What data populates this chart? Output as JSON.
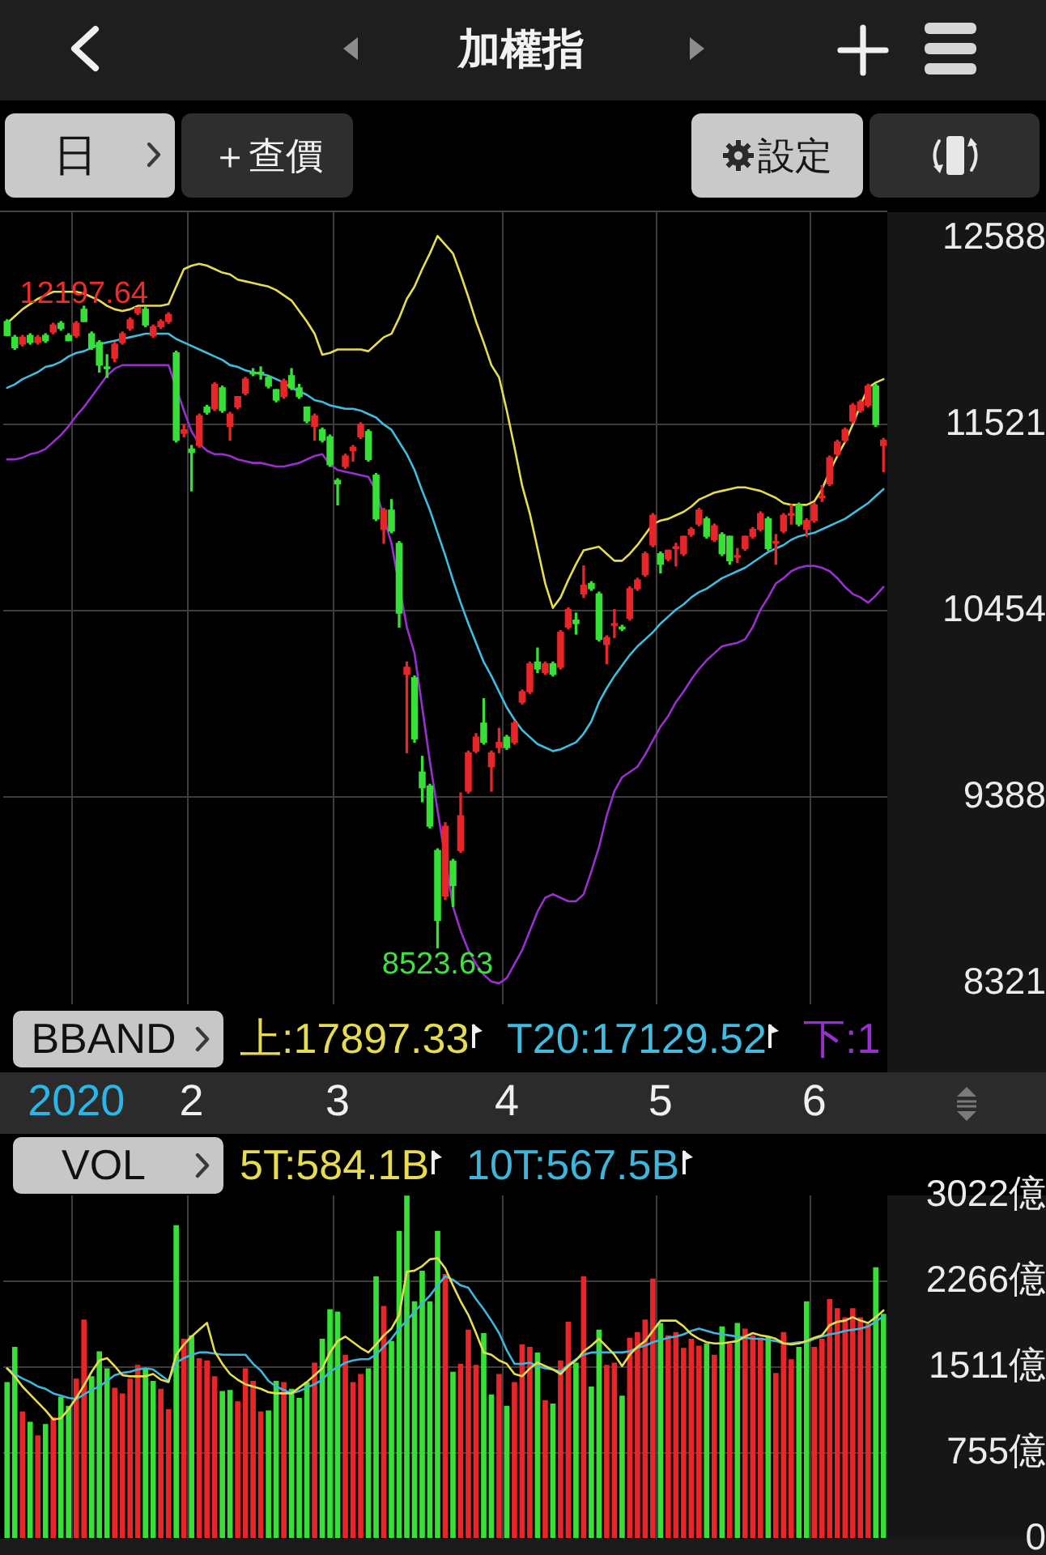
{
  "chart_data": [
    {
      "type": "candlestick",
      "title": "加權指",
      "categories": [
        null,
        null,
        null,
        null,
        null,
        null,
        null,
        null,
        null,
        "2020",
        null,
        null,
        null,
        null,
        null,
        null,
        null,
        null,
        null,
        null,
        null,
        null,
        null,
        null,
        "2",
        null,
        null,
        null,
        null,
        null,
        null,
        null,
        null,
        null,
        null,
        null,
        null,
        null,
        null,
        null,
        null,
        null,
        null,
        "3",
        null,
        null,
        null,
        null,
        null,
        null,
        null,
        null,
        null,
        null,
        null,
        null,
        null,
        null,
        null,
        null,
        null,
        null,
        null,
        null,
        null,
        "4",
        null,
        null,
        null,
        null,
        null,
        null,
        null,
        null,
        null,
        null,
        null,
        null,
        null,
        null,
        null,
        null,
        null,
        null,
        null,
        "5",
        null,
        null,
        null,
        null,
        null,
        null,
        null,
        null,
        null,
        null,
        null,
        null,
        null,
        null,
        null,
        null,
        null,
        null,
        null,
        "6",
        null,
        null,
        null,
        null,
        null,
        null,
        null,
        null,
        null
      ],
      "ohlc": [
        [
          12110,
          12120,
          12030,
          12030
        ],
        [
          12020,
          12030,
          11950,
          11960
        ],
        [
          11980,
          12030,
          11970,
          12020
        ],
        [
          12030,
          12040,
          11980,
          11990
        ],
        [
          11990,
          12030,
          11980,
          12020
        ],
        [
          12030,
          12040,
          11990,
          12000
        ],
        [
          12050,
          12100,
          12040,
          12090
        ],
        [
          12100,
          12110,
          12060,
          12070
        ],
        [
          12030,
          12040,
          12000,
          12000
        ],
        [
          12030,
          12110,
          12020,
          12100
        ],
        [
          12180,
          12197.64,
          12110,
          12110
        ],
        [
          12040,
          12050,
          11950,
          11960
        ],
        [
          11990,
          12000,
          11820,
          11860
        ],
        [
          11850,
          11920,
          11790,
          11840
        ],
        [
          11900,
          11990,
          11880,
          11980
        ],
        [
          11990,
          12050,
          11980,
          12040
        ],
        [
          12070,
          12130,
          12060,
          12120
        ],
        [
          12160,
          12190,
          12150,
          12190
        ],
        [
          12180,
          12190,
          12080,
          12090
        ],
        [
          12030,
          12090,
          12020,
          12080
        ],
        [
          12080,
          12120,
          12070,
          12110
        ],
        [
          12110,
          12160,
          12100,
          12150
        ],
        [
          11930,
          11940,
          11420,
          11430
        ],
        [
          11470,
          11520,
          11450,
          11490
        ],
        [
          11380,
          11400,
          11140,
          11360
        ],
        [
          11400,
          11580,
          11390,
          11570
        ],
        [
          11620,
          11630,
          11580,
          11590
        ],
        [
          11610,
          11760,
          11600,
          11750
        ],
        [
          11730,
          11740,
          11590,
          11600
        ],
        [
          11510,
          11590,
          11430,
          11580
        ],
        [
          11620,
          11680,
          11610,
          11680
        ],
        [
          11700,
          11790,
          11690,
          11780
        ],
        [
          11820,
          11840,
          11800,
          11810
        ],
        [
          11820,
          11850,
          11780,
          11810
        ],
        [
          11790,
          11800,
          11730,
          11740
        ],
        [
          11720,
          11720,
          11650,
          11660
        ],
        [
          11680,
          11780,
          11670,
          11770
        ],
        [
          11800,
          11840,
          11720,
          11730
        ],
        [
          11730,
          11750,
          11670,
          11680
        ],
        [
          11620,
          11620,
          11530,
          11540
        ],
        [
          11510,
          11580,
          11430,
          11570
        ],
        [
          11490,
          11500,
          11420,
          11430
        ],
        [
          11450,
          11460,
          11280,
          11290
        ],
        [
          11200,
          11210,
          11060,
          11180
        ],
        [
          11280,
          11350,
          11270,
          11340
        ],
        [
          11370,
          11400,
          11310,
          11390
        ],
        [
          11450,
          11530,
          11440,
          11520
        ],
        [
          11480,
          11490,
          11310,
          11320
        ],
        [
          11230,
          11240,
          10970,
          10980
        ],
        [
          10920,
          11040,
          10840,
          11030
        ],
        [
          11030,
          11090,
          10900,
          10910
        ],
        [
          10840,
          10850,
          10360,
          10440
        ],
        [
          10090,
          10160,
          9640,
          10130
        ],
        [
          10070,
          10080,
          9700,
          9720
        ],
        [
          9530,
          9620,
          9360,
          9440
        ],
        [
          9450,
          9460,
          9210,
          9220
        ],
        [
          9080,
          9090,
          8523.63,
          8680
        ],
        [
          8820,
          9240,
          8800,
          9220
        ],
        [
          9020,
          9030,
          8760,
          8880
        ],
        [
          9080,
          9410,
          9070,
          9280
        ],
        [
          9420,
          9650,
          9410,
          9640
        ],
        [
          9650,
          9750,
          9640,
          9730
        ],
        [
          9810,
          9950,
          9690,
          9700
        ],
        [
          9560,
          9650,
          9420,
          9640
        ],
        [
          9670,
          9780,
          9640,
          9700
        ],
        [
          9730,
          9740,
          9660,
          9670
        ],
        [
          9700,
          9820,
          9690,
          9810
        ],
        [
          9930,
          10000,
          9920,
          9990
        ],
        [
          9990,
          10160,
          9980,
          10150
        ],
        [
          10160,
          10240,
          10100,
          10120
        ],
        [
          10100,
          10160,
          10090,
          10150
        ],
        [
          10150,
          10160,
          10080,
          10090
        ],
        [
          10130,
          10340,
          10120,
          10330
        ],
        [
          10360,
          10470,
          10350,
          10460
        ],
        [
          10400,
          10440,
          10320,
          10380
        ],
        [
          10550,
          10710,
          10530,
          10600
        ],
        [
          10610,
          10620,
          10570,
          10580
        ],
        [
          10550,
          10560,
          10280,
          10290
        ],
        [
          10260,
          10310,
          10150,
          10300
        ],
        [
          10370,
          10460,
          10300,
          10380
        ],
        [
          10360,
          10370,
          10340,
          10350
        ],
        [
          10410,
          10590,
          10400,
          10580
        ],
        [
          10580,
          10640,
          10570,
          10630
        ],
        [
          10660,
          10790,
          10650,
          10780
        ],
        [
          10830,
          11010,
          10820,
          11000
        ],
        [
          10780,
          10790,
          10670,
          10720
        ],
        [
          10750,
          10800,
          10740,
          10800
        ],
        [
          10810,
          10840,
          10710,
          10820
        ],
        [
          10780,
          10880,
          10770,
          10880
        ],
        [
          10890,
          10930,
          10880,
          10920
        ],
        [
          10950,
          11040,
          10940,
          11030
        ],
        [
          10980,
          10990,
          10870,
          10880
        ],
        [
          10860,
          10950,
          10850,
          10940
        ],
        [
          10890,
          10900,
          10770,
          10780
        ],
        [
          10880,
          10880,
          10720,
          10740
        ],
        [
          10760,
          10810,
          10730,
          10770
        ],
        [
          10810,
          10880,
          10800,
          10880
        ],
        [
          10880,
          10930,
          10870,
          10920
        ],
        [
          10920,
          11020,
          10910,
          11010
        ],
        [
          10980,
          10990,
          10800,
          10810
        ],
        [
          10840,
          10890,
          10720,
          10850
        ],
        [
          10910,
          11010,
          10900,
          11000
        ],
        [
          11000,
          11060,
          10950,
          11010
        ],
        [
          11060,
          11070,
          10940,
          10950
        ],
        [
          10920,
          10980,
          10880,
          10970
        ],
        [
          10970,
          11070,
          10960,
          11060
        ],
        [
          11100,
          11170,
          11080,
          11110
        ],
        [
          11180,
          11340,
          11170,
          11330
        ],
        [
          11350,
          11430,
          11340,
          11420
        ],
        [
          11430,
          11500,
          11420,
          11490
        ],
        [
          11540,
          11640,
          11530,
          11630
        ],
        [
          11600,
          11660,
          11590,
          11650
        ],
        [
          11630,
          11750,
          11620,
          11740
        ],
        [
          11740,
          11750,
          11510,
          11520
        ],
        [
          11400,
          11440,
          11250,
          11430
        ]
      ],
      "colors": [
        "#36e036",
        "#36e036",
        "#e8262a",
        "#36e036",
        "#e8262a",
        "#36e036",
        "#e8262a",
        "#36e036",
        "#36e036",
        "#e8262a",
        "#36e036",
        "#36e036",
        "#36e036",
        "#36e036",
        "#e8262a",
        "#e8262a",
        "#e8262a",
        "#e8262a",
        "#36e036",
        "#e8262a",
        "#e8262a",
        "#e8262a",
        "#36e036",
        "#e8262a",
        "#36e036",
        "#e8262a",
        "#36e036",
        "#e8262a",
        "#36e036",
        "#e8262a",
        "#e8262a",
        "#e8262a",
        "#36e036",
        "#36e036",
        "#36e036",
        "#36e036",
        "#e8262a",
        "#36e036",
        "#36e036",
        "#36e036",
        "#e8262a",
        "#36e036",
        "#36e036",
        "#36e036",
        "#e8262a",
        "#e8262a",
        "#e8262a",
        "#36e036",
        "#36e036",
        "#e8262a",
        "#36e036",
        "#36e036",
        "#e8262a",
        "#36e036",
        "#36e036",
        "#36e036",
        "#36e036",
        "#e8262a",
        "#36e036",
        "#e8262a",
        "#e8262a",
        "#e8262a",
        "#36e036",
        "#e8262a",
        "#e8262a",
        "#36e036",
        "#e8262a",
        "#e8262a",
        "#e8262a",
        "#36e036",
        "#e8262a",
        "#36e036",
        "#e8262a",
        "#e8262a",
        "#36e036",
        "#e8262a",
        "#36e036",
        "#36e036",
        "#e8262a",
        "#e8262a",
        "#36e036",
        "#e8262a",
        "#e8262a",
        "#e8262a",
        "#e8262a",
        "#36e036",
        "#e8262a",
        "#e8262a",
        "#e8262a",
        "#e8262a",
        "#e8262a",
        "#36e036",
        "#e8262a",
        "#36e036",
        "#36e036",
        "#e8262a",
        "#e8262a",
        "#e8262a",
        "#e8262a",
        "#36e036",
        "#e8262a",
        "#e8262a",
        "#e8262a",
        "#36e036",
        "#e8262a",
        "#e8262a",
        "#e8262a",
        "#e8262a",
        "#e8262a",
        "#e8262a",
        "#e8262a",
        "#e8262a",
        "#e8262a",
        "#36e036",
        "#e8262a"
      ],
      "series": [
        {
          "type": "line",
          "name": "上:17897.33",
          "color": "#e6dc50",
          "values": [
            12100,
            12140,
            12180,
            12210,
            12240,
            12260,
            12280,
            12280,
            12280,
            12280,
            12270,
            12250,
            12230,
            12200,
            12180,
            12170,
            12180,
            12200,
            12200,
            12200,
            12200,
            12210,
            12310,
            12410,
            12430,
            12440,
            12430,
            12410,
            12390,
            12380,
            12350,
            12340,
            12330,
            12320,
            12310,
            12290,
            12260,
            12230,
            12170,
            12110,
            12040,
            11920,
            11930,
            11950,
            11950,
            11950,
            11950,
            11940,
            11980,
            12020,
            12040,
            12130,
            12240,
            12310,
            12410,
            12500,
            12600,
            12550,
            12500,
            12380,
            12250,
            12110,
            11990,
            11860,
            11790,
            11600,
            11390,
            11170,
            11010,
            10810,
            10610,
            10470,
            10530,
            10630,
            10720,
            10800,
            10810,
            10820,
            10780,
            10740,
            10740,
            10780,
            10830,
            10890,
            10950,
            10970,
            10980,
            11000,
            11020,
            11050,
            11090,
            11110,
            11130,
            11140,
            11150,
            11160,
            11160,
            11150,
            11140,
            11120,
            11100,
            11070,
            11060,
            11060,
            11060,
            11080,
            11150,
            11250,
            11340,
            11420,
            11520,
            11630,
            11730,
            11760,
            11780
          ]
        },
        {
          "type": "line",
          "name": "T20:17129.52",
          "color": "#3fbde0",
          "values": [
            11730,
            11750,
            11780,
            11800,
            11820,
            11850,
            11860,
            11880,
            11910,
            11930,
            11940,
            11960,
            11980,
            11990,
            12000,
            12010,
            12020,
            12030,
            12040,
            12040,
            12040,
            12040,
            12010,
            11990,
            11970,
            11950,
            11930,
            11910,
            11890,
            11860,
            11850,
            11830,
            11820,
            11810,
            11800,
            11780,
            11760,
            11730,
            11710,
            11690,
            11660,
            11650,
            11630,
            11620,
            11610,
            11610,
            11600,
            11580,
            11560,
            11520,
            11490,
            11420,
            11350,
            11260,
            11140,
            11030,
            10900,
            10770,
            10630,
            10500,
            10380,
            10270,
            10160,
            10080,
            9990,
            9900,
            9830,
            9770,
            9730,
            9690,
            9670,
            9650,
            9660,
            9680,
            9700,
            9750,
            9820,
            9930,
            10010,
            10080,
            10140,
            10200,
            10250,
            10290,
            10330,
            10380,
            10420,
            10460,
            10490,
            10530,
            10560,
            10580,
            10610,
            10640,
            10660,
            10680,
            10700,
            10730,
            10760,
            10790,
            10810,
            10830,
            10860,
            10880,
            10890,
            10900,
            10920,
            10940,
            10960,
            10980,
            11010,
            11040,
            11070,
            11110,
            11150
          ]
        },
        {
          "type": "line",
          "name": "下:1",
          "color": "#9a2fd0",
          "values": [
            11320,
            11320,
            11330,
            11350,
            11360,
            11380,
            11420,
            11460,
            11510,
            11570,
            11620,
            11680,
            11740,
            11800,
            11840,
            11860,
            11860,
            11860,
            11860,
            11860,
            11860,
            11860,
            null,
            11600,
            11480,
            11410,
            11370,
            11350,
            11350,
            11340,
            11320,
            11310,
            11300,
            11300,
            11290,
            11280,
            11280,
            11290,
            11300,
            11320,
            11340,
            11350,
            11290,
            11260,
            11250,
            11240,
            11230,
            11220,
            11140,
            null,
            10840,
            null,
            10360,
            10210,
            9900,
            9590,
            9310,
            null,
            8760,
            8620,
            8510,
            8430,
            8370,
            8330,
            8320,
            8350,
            8430,
            8510,
            8620,
            8730,
            8810,
            8830,
            8810,
            8790,
            8790,
            8830,
            8960,
            9100,
            9280,
            9420,
            9500,
            9530,
            9560,
            9630,
            9710,
            9790,
            9850,
            9930,
            9990,
            10060,
            10120,
            10170,
            10210,
            10250,
            10260,
            10270,
            10290,
            10360,
            10460,
            10530,
            10610,
            10640,
            10680,
            10700,
            10710,
            10710,
            10700,
            10680,
            10640,
            10590,
            10550,
            10530,
            10500,
            10540,
            10590
          ]
        }
      ],
      "ylim": [
        8200,
        12736
      ],
      "yticks": [
        12588,
        11521,
        10454,
        9388,
        8321
      ],
      "grid": true,
      "legend": "bottom",
      "annotations": [
        {
          "text": "12197.64",
          "y": 12197.64
        },
        {
          "text": "8523.63",
          "y": 8523.63
        },
        "BBAND",
        "日",
        "＋查價",
        "設定"
      ]
    },
    {
      "type": "bar",
      "categories": [
        null,
        null,
        null,
        null,
        null,
        null,
        null,
        null,
        null,
        "2020",
        null,
        null,
        null,
        null,
        null,
        null,
        null,
        null,
        null,
        null,
        null,
        null,
        null,
        null,
        "2",
        null,
        null,
        null,
        null,
        null,
        null,
        null,
        null,
        null,
        null,
        null,
        null,
        null,
        null,
        null,
        null,
        null,
        null,
        "3",
        null,
        null,
        null,
        null,
        null,
        null,
        null,
        null,
        null,
        null,
        null,
        null,
        null,
        null,
        null,
        null,
        null,
        null,
        null,
        null,
        null,
        "4",
        null,
        null,
        null,
        null,
        null,
        null,
        null,
        null,
        null,
        null,
        null,
        null,
        null,
        null,
        null,
        null,
        null,
        null,
        null,
        "5",
        null,
        null,
        null,
        null,
        null,
        null,
        null,
        null,
        null,
        null,
        null,
        null,
        null,
        null,
        null,
        null,
        null,
        null,
        null,
        "6",
        null,
        null,
        null,
        null,
        null,
        null,
        null,
        null,
        null
      ],
      "series": [
        {
          "type": "bar",
          "values": [
            1380,
            1690,
            1120,
            1030,
            910,
            1010,
            1070,
            1250,
            1170,
            1410,
            1930,
            1430,
            1650,
            1500,
            1330,
            1280,
            1410,
            1530,
            1500,
            1390,
            1320,
            1140,
            2760,
            1760,
            1790,
            1590,
            1570,
            1430,
            1300,
            1310,
            1210,
            1500,
            1390,
            1120,
            1130,
            1390,
            1380,
            1320,
            1240,
            1380,
            1550,
            1760,
            2020,
            2000,
            1620,
            1380,
            1450,
            1500,
            2310,
            2050,
            1740,
            2710,
            3020,
            2090,
            2360,
            2090,
            2710,
            2330,
            1470,
            1540,
            1840,
            1530,
            1810,
            1270,
            1450,
            1170,
            1380,
            1710,
            1690,
            1640,
            1220,
            1190,
            1570,
            1910,
            1550,
            2310,
            1340,
            1840,
            1530,
            1550,
            1260,
            1770,
            1820,
            1930,
            2290,
            1900,
            1790,
            1820,
            1680,
            1760,
            1700,
            1720,
            1620,
            1870,
            1720,
            1900,
            1850,
            1790,
            1770,
            1780,
            1460,
            1820,
            1580,
            1690,
            2090,
            1690,
            1760,
            2110,
            2030,
            1950,
            2030,
            1950,
            1890,
            2390,
            1980
          ],
          "colors": [
            "#36e036",
            "#36e036",
            "#e8262a",
            "#36e036",
            "#e8262a",
            "#36e036",
            "#e8262a",
            "#36e036",
            "#36e036",
            "#e8262a",
            "#e8262a",
            "#36e036",
            "#36e036",
            "#36e036",
            "#e8262a",
            "#e8262a",
            "#e8262a",
            "#e8262a",
            "#36e036",
            "#36e036",
            "#e8262a",
            "#e8262a",
            "#36e036",
            "#e8262a",
            "#36e036",
            "#e8262a",
            "#e8262a",
            "#e8262a",
            "#36e036",
            "#36e036",
            "#e8262a",
            "#e8262a",
            "#e8262a",
            "#e8262a",
            "#36e036",
            "#36e036",
            "#e8262a",
            "#36e036",
            "#36e036",
            "#36e036",
            "#e8262a",
            "#36e036",
            "#36e036",
            "#36e036",
            "#e8262a",
            "#e8262a",
            "#e8262a",
            "#36e036",
            "#36e036",
            "#e8262a",
            "#36e036",
            "#36e036",
            "#36e036",
            "#36e036",
            "#36e036",
            "#36e036",
            "#36e036",
            "#e8262a",
            "#36e036",
            "#e8262a",
            "#e8262a",
            "#e8262a",
            "#36e036",
            "#36e036",
            "#e8262a",
            "#36e036",
            "#e8262a",
            "#e8262a",
            "#e8262a",
            "#36e036",
            "#e8262a",
            "#36e036",
            "#e8262a",
            "#e8262a",
            "#36e036",
            "#e8262a",
            "#36e036",
            "#36e036",
            "#e8262a",
            "#e8262a",
            "#36e036",
            "#e8262a",
            "#e8262a",
            "#e8262a",
            "#e8262a",
            "#36e036",
            "#e8262a",
            "#e8262a",
            "#e8262a",
            "#e8262a",
            "#e8262a",
            "#36e036",
            "#e8262a",
            "#36e036",
            "#e8262a",
            "#36e036",
            "#e8262a",
            "#e8262a",
            "#e8262a",
            "#36e036",
            "#e8262a",
            "#e8262a",
            "#e8262a",
            "#36e036",
            "#36e036",
            "#e8262a",
            "#e8262a",
            "#e8262a",
            "#e8262a",
            "#e8262a",
            "#e8262a",
            "#e8262a",
            "#e8262a",
            "#36e036",
            "#36e036"
          ]
        },
        {
          "type": "line",
          "name": "5T:584.1B",
          "color": "#e6dc50",
          "values": [
            1500,
            1430,
            1340,
            1270,
            1200,
            1130,
            1050,
            1060,
            1140,
            1240,
            1350,
            1470,
            1570,
            1590,
            1520,
            1440,
            1430,
            1430,
            1430,
            1450,
            1400,
            1380,
            1620,
            1710,
            1780,
            1840,
            1900,
            1650,
            1540,
            1450,
            1400,
            1360,
            1340,
            1320,
            1290,
            1280,
            1280,
            1280,
            1330,
            1380,
            1440,
            1500,
            1640,
            1740,
            1780,
            1730,
            1680,
            1640,
            1710,
            1790,
            1850,
            1970,
            2350,
            2360,
            2400,
            2460,
            2470,
            2380,
            2230,
            2090,
            1970,
            1810,
            1640,
            1620,
            1570,
            1540,
            1450,
            1430,
            1500,
            1550,
            1520,
            1490,
            1450,
            1520,
            1570,
            1650,
            1700,
            1760,
            1690,
            1620,
            1520,
            1620,
            1690,
            1740,
            1830,
            1920,
            1920,
            1920,
            1870,
            1800,
            1760,
            1730,
            1720,
            1720,
            1730,
            1740,
            1780,
            1810,
            1790,
            1780,
            1760,
            1720,
            1710,
            1720,
            1740,
            1770,
            1790,
            1880,
            1910,
            1920,
            1950,
            1920,
            1900,
            1950,
            2010
          ]
        },
        {
          "type": "line",
          "name": "10T:567.5B",
          "color": "#3cb6dc",
          "values": [
            1500,
            1450,
            1410,
            1380,
            1340,
            1320,
            1280,
            1260,
            1240,
            1230,
            1270,
            1310,
            1340,
            1390,
            1440,
            1460,
            1470,
            1490,
            1500,
            1490,
            1440,
            1390,
            1550,
            1590,
            1620,
            1640,
            1640,
            1630,
            1620,
            1620,
            1620,
            1620,
            1540,
            1480,
            1390,
            1340,
            1310,
            1280,
            1300,
            1330,
            1360,
            1400,
            1470,
            1510,
            1550,
            1570,
            1580,
            1580,
            1620,
            1690,
            1760,
            1850,
            1920,
            2000,
            2070,
            2140,
            2230,
            2310,
            2280,
            2230,
            2210,
            2110,
            2020,
            1920,
            1810,
            1660,
            1540,
            1540,
            1550,
            1520,
            1500,
            1490,
            1470,
            1530,
            1580,
            1620,
            1640,
            1640,
            1640,
            1640,
            1640,
            1650,
            1680,
            1700,
            1730,
            1750,
            1770,
            1780,
            1800,
            1830,
            1850,
            1830,
            1810,
            1800,
            1790,
            1780,
            1770,
            1760,
            1760,
            1750,
            1740,
            1720,
            1720,
            1730,
            1730,
            1760,
            1780,
            1800,
            1810,
            1830,
            1840,
            1850,
            1870,
            1910,
            1960
          ]
        }
      ],
      "ylim": [
        0,
        3022
      ],
      "yticks": [
        0,
        {
          "value": 755,
          "label": "755億"
        },
        {
          "value": 1511,
          "label": "1511億"
        },
        {
          "value": 2266,
          "label": "2266億"
        },
        {
          "value": 3022,
          "label": "3022億"
        }
      ],
      "grid": true,
      "legend": "top",
      "tick_labels": "y",
      "annotations": [
        "VOL"
      ]
    }
  ]
}
